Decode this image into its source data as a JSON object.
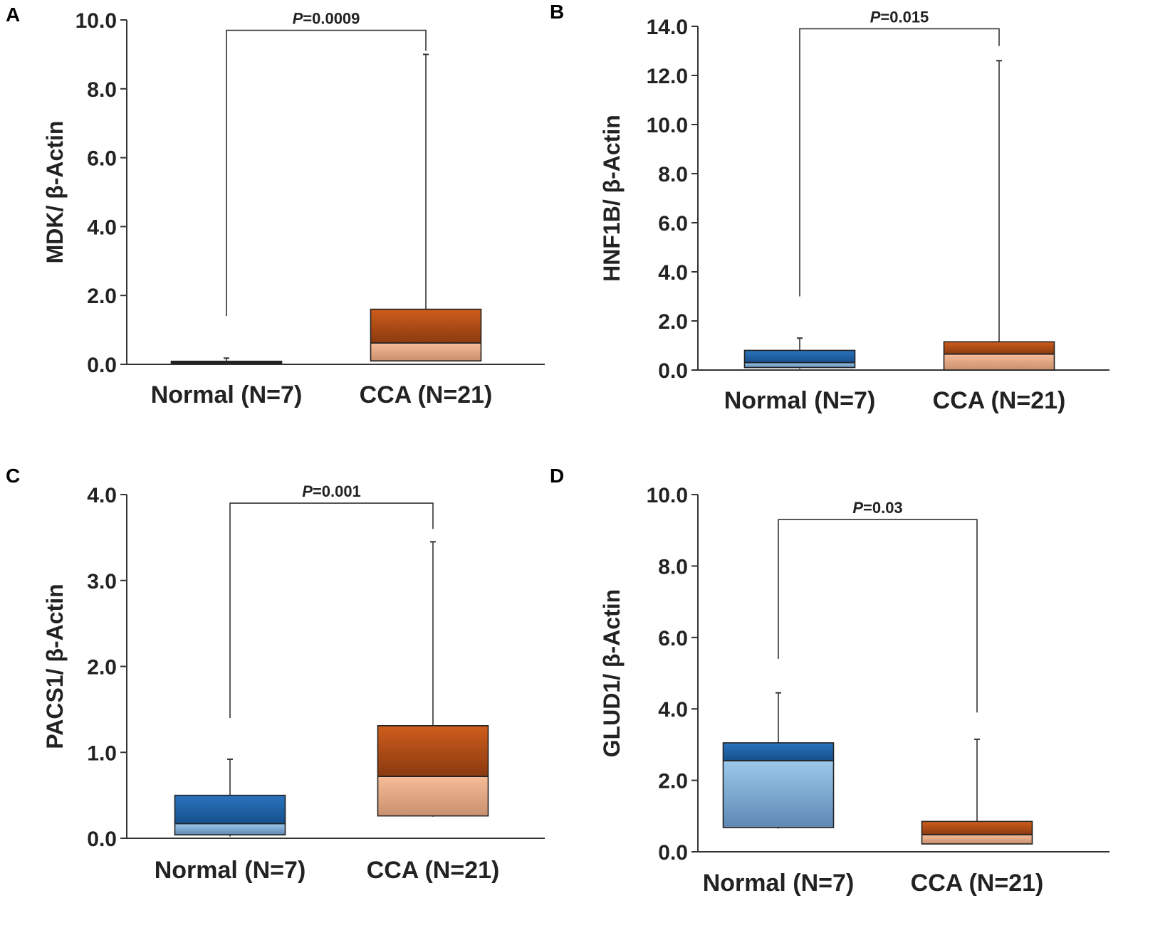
{
  "colors": {
    "normal_dark": "#1f66ad",
    "normal_light": "#9cc9ec",
    "normal_shadow": "#5f88b3",
    "cca_dark": "#c4561a",
    "cca_light": "#f7bc98",
    "cca_shadow": "#c9906f",
    "axis": "#333333"
  },
  "chart_data": [
    {
      "panel": "A",
      "type": "box",
      "categories": [
        "Normal (N=7)",
        "CCA (N=21)"
      ],
      "ylabel": "MDK/ β-Actin",
      "ylim": [
        0,
        10
      ],
      "yticks": [
        "0.0",
        "2.0",
        "4.0",
        "6.0",
        "8.0",
        "10.0"
      ],
      "boxes": [
        {
          "group": "Normal",
          "min": 0.0,
          "q1": 0.03,
          "median": 0.06,
          "q3": 0.09,
          "max": 0.18
        },
        {
          "group": "CCA",
          "min": 0.1,
          "q1": 0.1,
          "median": 0.62,
          "q3": 1.6,
          "max": 9.0
        }
      ],
      "bracket": {
        "p_label": "P",
        "p_value": "=0.0009",
        "left_y": 1.4,
        "right_y": 9.1,
        "top_y": 9.7
      }
    },
    {
      "panel": "B",
      "type": "box",
      "categories": [
        "Normal (N=7)",
        "CCA (N=21)"
      ],
      "ylabel": "HNF1B/ β-Actin",
      "ylim": [
        0,
        14
      ],
      "yticks": [
        "0.0",
        "2.0",
        "4.0",
        "6.0",
        "8.0",
        "10.0",
        "12.0",
        "14.0"
      ],
      "boxes": [
        {
          "group": "Normal",
          "min": 0.05,
          "q1": 0.1,
          "median": 0.3,
          "q3": 0.8,
          "max": 1.3
        },
        {
          "group": "CCA",
          "min": 0.0,
          "q1": 0.0,
          "median": 0.65,
          "q3": 1.15,
          "max": 12.6
        }
      ],
      "bracket": {
        "p_label": "P",
        "p_value": "=0.015",
        "left_y": 3.0,
        "right_y": 13.2,
        "top_y": 13.9
      }
    },
    {
      "panel": "C",
      "type": "box",
      "categories": [
        "Normal (N=7)",
        "CCA (N=21)"
      ],
      "ylabel": "PACS1/ β-Actin",
      "ylim": [
        0,
        4
      ],
      "yticks": [
        "0.0",
        "1.0",
        "2.0",
        "3.0",
        "4.0"
      ],
      "boxes": [
        {
          "group": "Normal",
          "min": 0.02,
          "q1": 0.04,
          "median": 0.17,
          "q3": 0.5,
          "max": 0.92
        },
        {
          "group": "CCA",
          "min": 0.25,
          "q1": 0.26,
          "median": 0.72,
          "q3": 1.31,
          "max": 3.45
        }
      ],
      "bracket": {
        "p_label": "P",
        "p_value": "=0.001",
        "left_y": 1.4,
        "right_y": 3.6,
        "top_y": 3.9
      }
    },
    {
      "panel": "D",
      "type": "box",
      "categories": [
        "Normal (N=7)",
        "CCA (N=21)"
      ],
      "ylabel": "GLUD1/ β-Actin",
      "ylim": [
        0,
        10
      ],
      "yticks": [
        "0.0",
        "2.0",
        "4.0",
        "6.0",
        "8.0",
        "10.0"
      ],
      "boxes": [
        {
          "group": "Normal",
          "min": 0.65,
          "q1": 0.68,
          "median": 2.55,
          "q3": 3.05,
          "max": 4.45
        },
        {
          "group": "CCA",
          "min": 0.22,
          "q1": 0.22,
          "median": 0.48,
          "q3": 0.85,
          "max": 3.15
        }
      ],
      "bracket": {
        "p_label": "P",
        "p_value": "=0.03",
        "left_y": 5.4,
        "right_y": 3.9,
        "top_y": 9.3
      }
    }
  ]
}
